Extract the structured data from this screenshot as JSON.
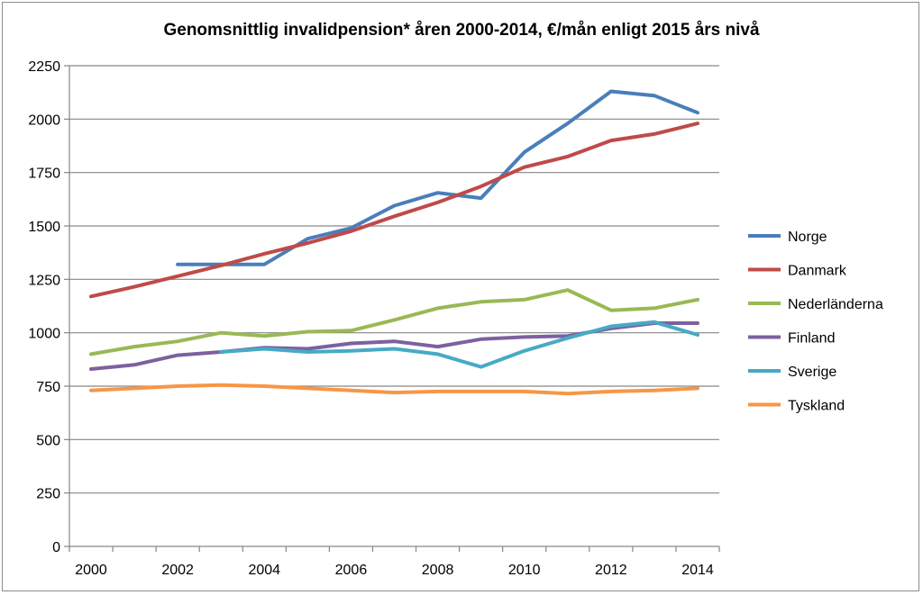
{
  "chart_data": {
    "type": "line",
    "title": "Genomsnittlig invalidpension*  åren 2000-2014, €/mån enligt 2015 års nivå",
    "xlabel": "",
    "ylabel": "",
    "x": [
      2000,
      2001,
      2002,
      2003,
      2004,
      2005,
      2006,
      2007,
      2008,
      2009,
      2010,
      2011,
      2012,
      2013,
      2014
    ],
    "x_tick_labels": [
      "2000",
      "2002",
      "2004",
      "2006",
      "2008",
      "2010",
      "2012",
      "2014"
    ],
    "y_tick_labels": [
      "0",
      "250",
      "500",
      "750",
      "1000",
      "1250",
      "1500",
      "1750",
      "2000",
      "2250"
    ],
    "ylim": [
      0,
      2250
    ],
    "grid": "horizontal",
    "legend_position": "right",
    "series": [
      {
        "name": "Norge",
        "color": "#4a7ebb",
        "values": [
          null,
          null,
          1320,
          1320,
          1320,
          1440,
          1490,
          1595,
          1655,
          1630,
          1845,
          1980,
          2130,
          2110,
          2030
        ]
      },
      {
        "name": "Danmark",
        "color": "#be4b48",
        "values": [
          1170,
          1215,
          1265,
          1315,
          1370,
          1420,
          1475,
          1545,
          1610,
          1685,
          1775,
          1825,
          1900,
          1930,
          1980
        ]
      },
      {
        "name": "Nederländerna",
        "color": "#98b954",
        "values": [
          900,
          935,
          960,
          1000,
          985,
          1005,
          1010,
          1060,
          1115,
          1145,
          1155,
          1200,
          1105,
          1115,
          1155
        ]
      },
      {
        "name": "Finland",
        "color": "#7d60a0",
        "values": [
          830,
          850,
          895,
          910,
          930,
          925,
          950,
          960,
          935,
          970,
          980,
          985,
          1020,
          1045,
          1045
        ]
      },
      {
        "name": "Sverige",
        "color": "#46aac5",
        "values": [
          null,
          null,
          null,
          910,
          925,
          910,
          915,
          925,
          900,
          840,
          915,
          975,
          1030,
          1050,
          990
        ]
      },
      {
        "name": "Tyskland",
        "color": "#f79646",
        "values": [
          730,
          740,
          750,
          755,
          750,
          740,
          730,
          720,
          725,
          725,
          725,
          715,
          725,
          730,
          740
        ]
      }
    ]
  }
}
